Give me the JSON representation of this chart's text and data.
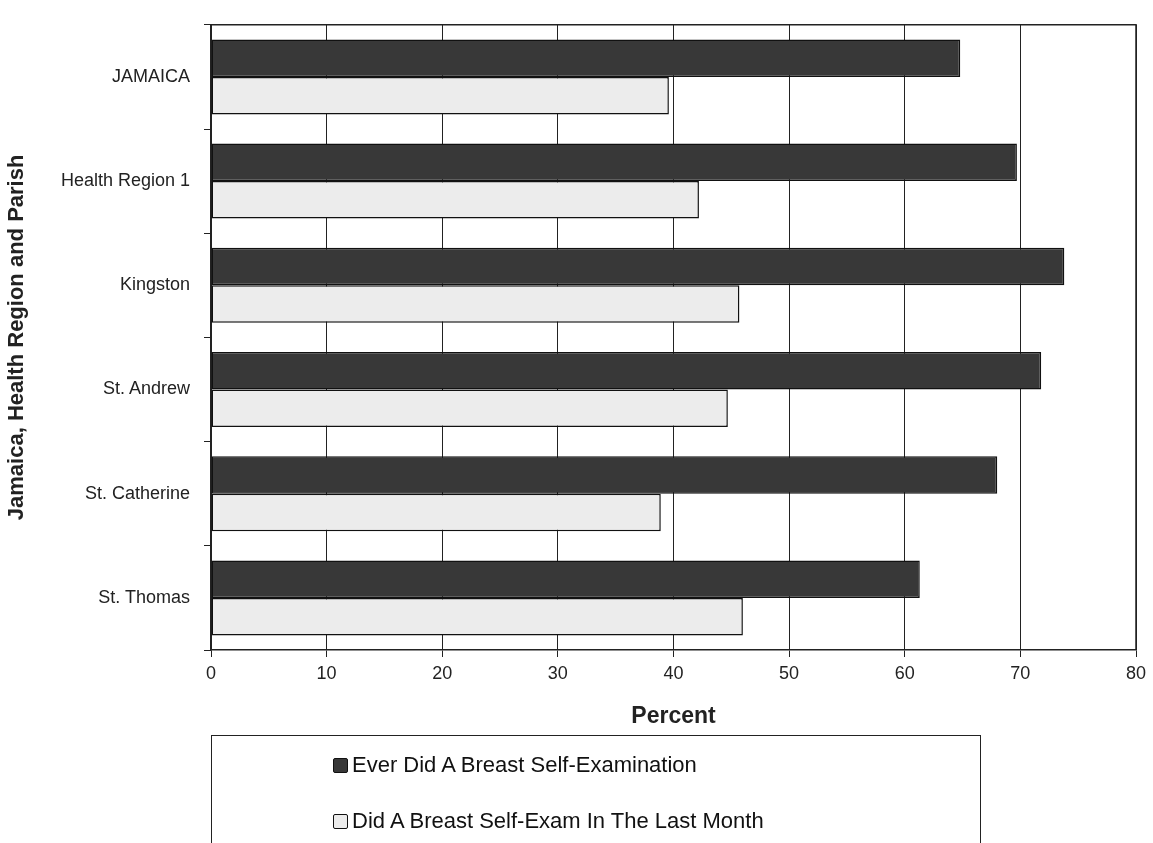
{
  "chart_data": {
    "type": "bar",
    "orientation": "horizontal",
    "categories": [
      "JAMAICA",
      "Health Region 1",
      "Kingston",
      "St. Andrew",
      "St. Catherine",
      "St. Thomas"
    ],
    "series": [
      {
        "name": "Ever Did A Breast Self-Examination",
        "color": "#383838",
        "values": [
          64.8,
          69.7,
          73.8,
          71.8,
          68.0,
          61.3
        ]
      },
      {
        "name": "Did A Breast Self-Exam In The Last Month",
        "color": "#ececec",
        "values": [
          39.6,
          42.2,
          45.7,
          44.7,
          38.9,
          46.0
        ]
      }
    ],
    "xlabel": "Percent",
    "ylabel": "Jamaica, Health Region and Parish",
    "xlim": [
      0,
      80
    ],
    "xticks": [
      0,
      10,
      20,
      30,
      40,
      50,
      60,
      70,
      80
    ],
    "grid": "x",
    "legend": "bottom"
  }
}
